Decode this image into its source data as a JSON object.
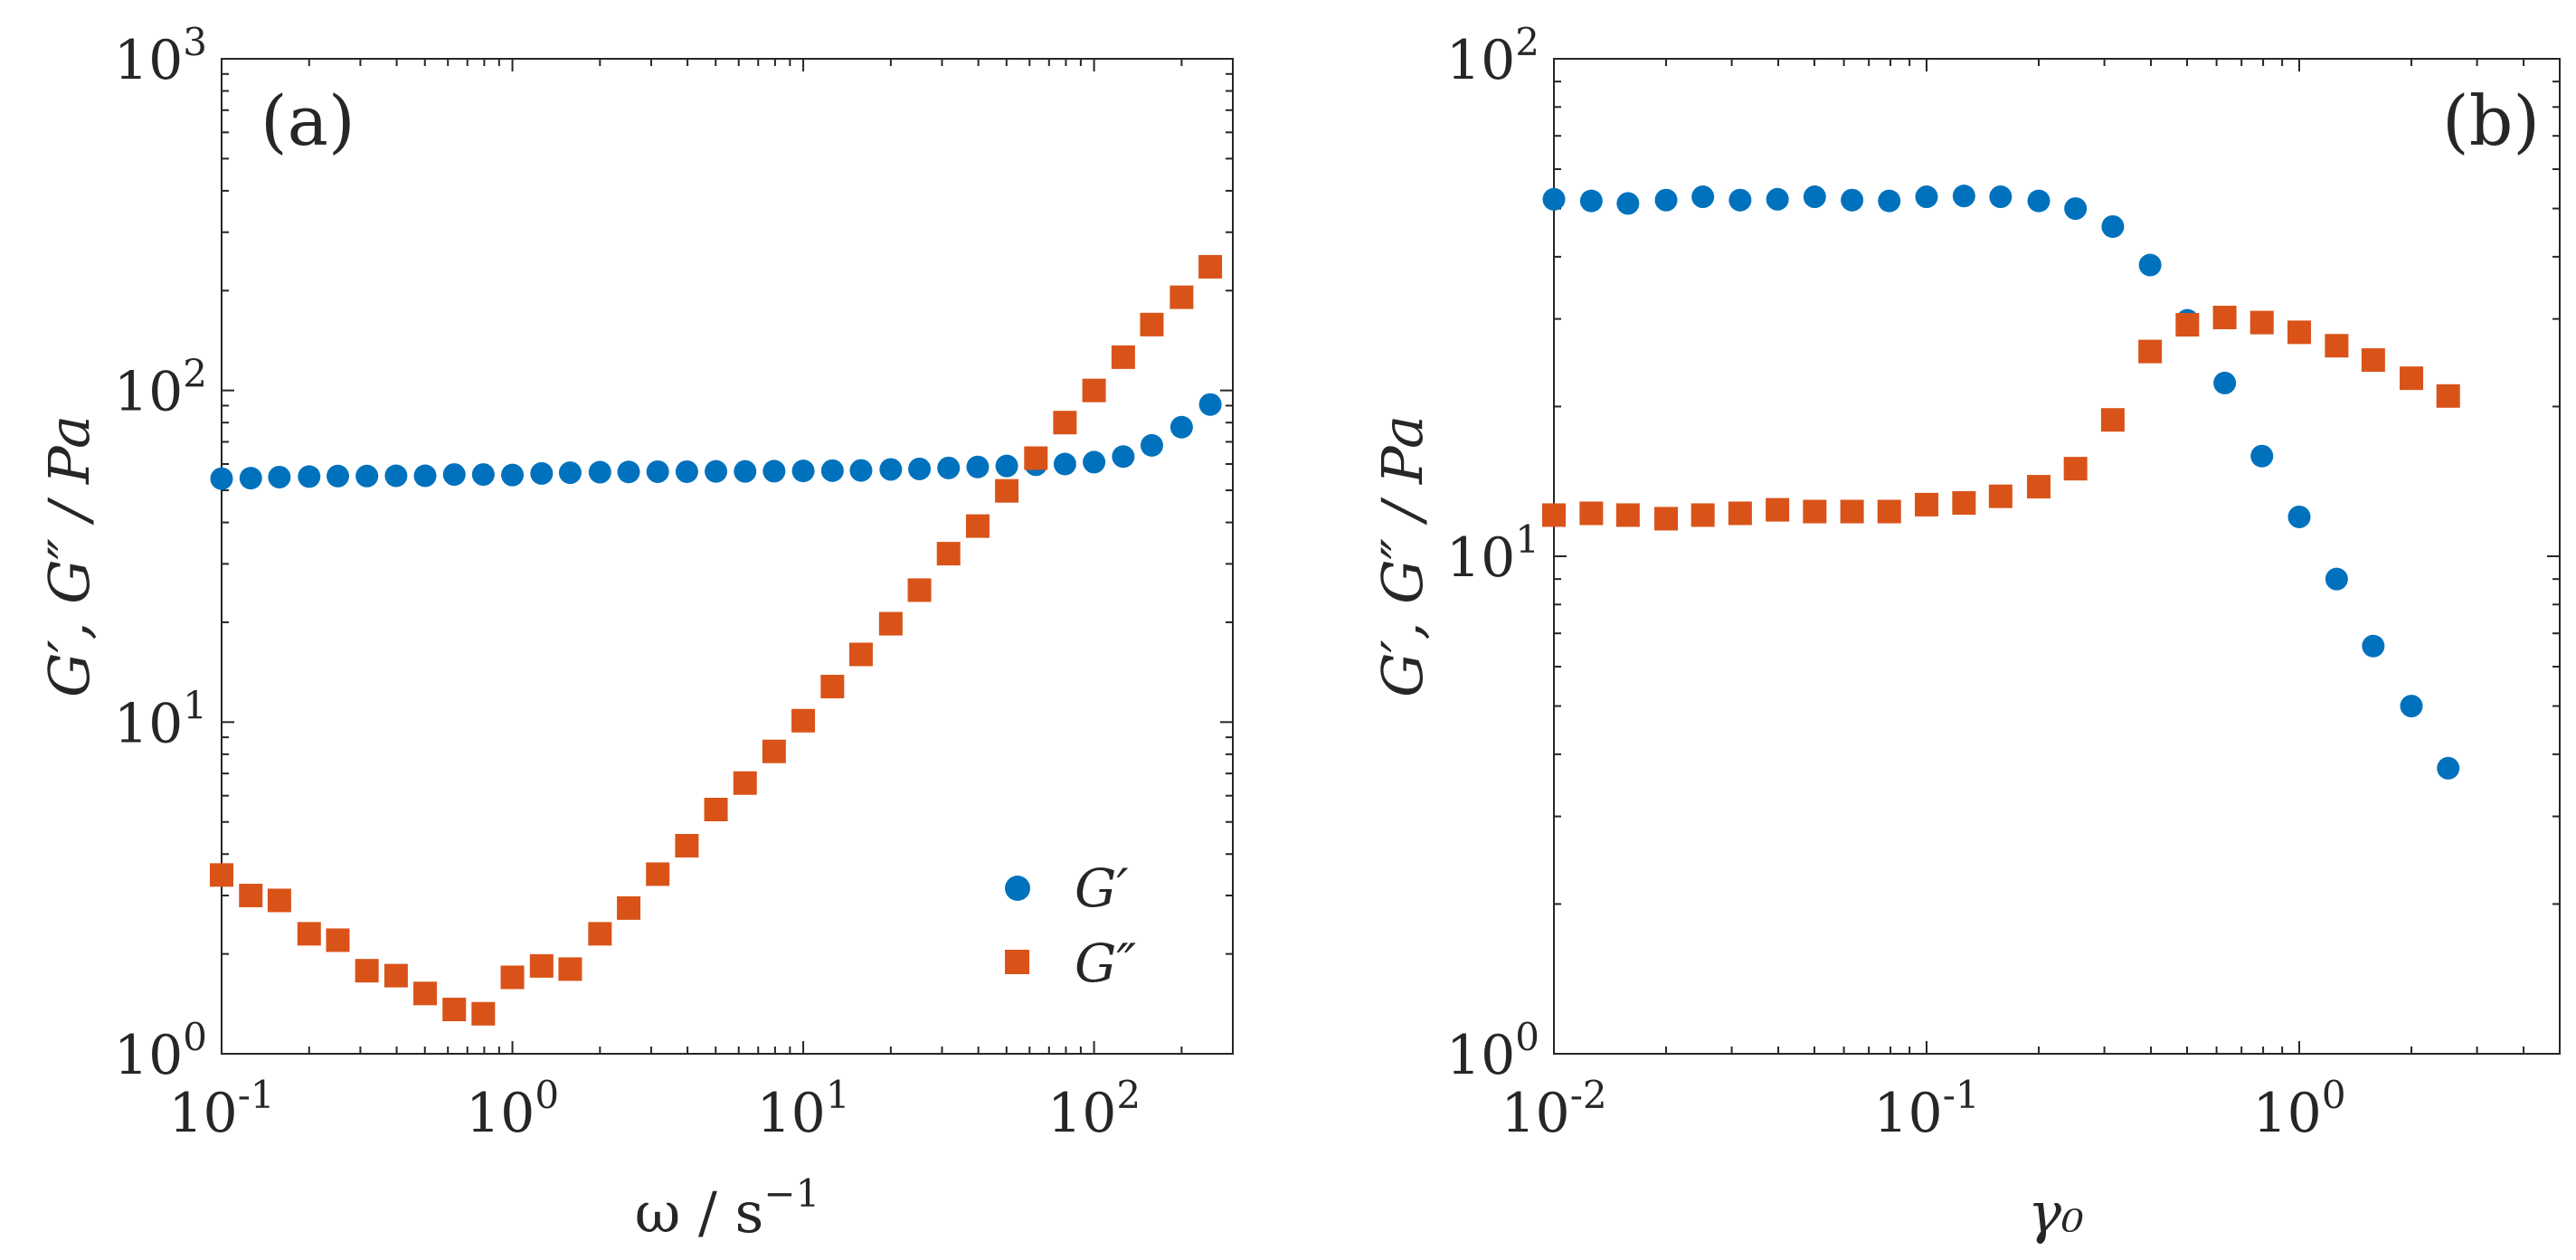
{
  "colors": {
    "g_prime": "#0072BD",
    "g_double_prime": "#D95319",
    "axis": "#262626"
  },
  "chart_data": [
    {
      "type": "scatter",
      "panel_label": "(a)",
      "xscale": "log",
      "yscale": "log",
      "xlim": [
        0.1,
        300
      ],
      "ylim": [
        1,
        1000
      ],
      "xlabel_main": "ω / s",
      "xlabel_sup": "−1",
      "ylabel": "G′, G″ / Pa",
      "xticks": [
        {
          "base": "10",
          "exp": "-1",
          "value": 0.1
        },
        {
          "base": "10",
          "exp": "0",
          "value": 1
        },
        {
          "base": "10",
          "exp": "1",
          "value": 10
        },
        {
          "base": "10",
          "exp": "2",
          "value": 100
        }
      ],
      "yticks": [
        {
          "base": "10",
          "exp": "0",
          "value": 1
        },
        {
          "base": "10",
          "exp": "1",
          "value": 10
        },
        {
          "base": "10",
          "exp": "2",
          "value": 100
        },
        {
          "base": "10",
          "exp": "3",
          "value": 1000
        }
      ],
      "legend": {
        "position": "bottom-right",
        "entries": [
          "G′",
          "G″"
        ]
      },
      "series": [
        {
          "name": "G′",
          "marker": "circle",
          "x": [
            0.1,
            0.126,
            0.158,
            0.2,
            0.251,
            0.316,
            0.398,
            0.501,
            0.631,
            0.794,
            1,
            1.26,
            1.58,
            2,
            2.51,
            3.16,
            3.98,
            5.01,
            6.31,
            7.94,
            10,
            12.6,
            15.8,
            20,
            25.1,
            31.6,
            39.8,
            50.1,
            63.1,
            79.4,
            100,
            126,
            158,
            200,
            251
          ],
          "y": [
            54.2,
            54.4,
            54.8,
            55,
            55.2,
            55.2,
            55.3,
            55.3,
            55.8,
            55.8,
            55.6,
            56.2,
            56.5,
            56.7,
            56.8,
            56.9,
            56.9,
            57,
            57,
            57.1,
            57.2,
            57.3,
            57.4,
            57.8,
            58,
            58.4,
            58.8,
            59.2,
            59.7,
            60,
            60.8,
            63.2,
            68.3,
            77.5,
            90.7
          ]
        },
        {
          "name": "G″",
          "marker": "square",
          "x": [
            0.1,
            0.126,
            0.158,
            0.2,
            0.251,
            0.316,
            0.398,
            0.501,
            0.631,
            0.794,
            1,
            1.26,
            1.58,
            2,
            2.51,
            3.16,
            3.98,
            5.01,
            6.31,
            7.94,
            10,
            12.6,
            15.8,
            20,
            25.1,
            31.6,
            39.8,
            50.1,
            63.1,
            79.4,
            100,
            126,
            158,
            200,
            251
          ],
          "y": [
            3.46,
            3,
            2.9,
            2.3,
            2.2,
            1.78,
            1.72,
            1.52,
            1.36,
            1.32,
            1.7,
            1.84,
            1.8,
            2.3,
            2.75,
            3.48,
            4.24,
            5.45,
            6.55,
            8.16,
            10.1,
            12.8,
            16,
            19.8,
            25,
            32.2,
            39,
            49.8,
            62.5,
            80,
            100,
            126,
            158,
            191,
            236
          ]
        }
      ]
    },
    {
      "type": "scatter",
      "panel_label": "(b)",
      "xscale": "log",
      "yscale": "log",
      "xlim": [
        0.01,
        5
      ],
      "ylim": [
        1,
        100
      ],
      "xlabel": "γ₀",
      "ylabel": "G′, G″ / Pa",
      "xticks": [
        {
          "base": "10",
          "exp": "-2",
          "value": 0.01
        },
        {
          "base": "10",
          "exp": "-1",
          "value": 0.1
        },
        {
          "base": "10",
          "exp": "0",
          "value": 1
        }
      ],
      "yticks": [
        {
          "base": "10",
          "exp": "0",
          "value": 1
        },
        {
          "base": "10",
          "exp": "1",
          "value": 10
        },
        {
          "base": "10",
          "exp": "2",
          "value": 100
        }
      ],
      "series": [
        {
          "name": "G′",
          "marker": "circle",
          "x": [
            0.01,
            0.0126,
            0.0158,
            0.02,
            0.0251,
            0.0316,
            0.0398,
            0.0501,
            0.0631,
            0.0794,
            0.1,
            0.126,
            0.158,
            0.2,
            0.251,
            0.316,
            0.398,
            0.501,
            0.631,
            0.794,
            1,
            1.26,
            1.58,
            2,
            2.51
          ],
          "y": [
            52.2,
            51.8,
            51.2,
            52,
            52.8,
            52,
            52.2,
            52.8,
            52,
            51.8,
            52.8,
            53,
            52.8,
            51.8,
            50,
            46,
            38.5,
            29.8,
            22.3,
            15.9,
            12,
            9,
            6.6,
            5,
            3.75
          ]
        },
        {
          "name": "G″",
          "marker": "square",
          "x": [
            0.01,
            0.0126,
            0.0158,
            0.02,
            0.0251,
            0.0316,
            0.0398,
            0.0501,
            0.0631,
            0.0794,
            0.1,
            0.126,
            0.158,
            0.2,
            0.251,
            0.316,
            0.398,
            0.501,
            0.631,
            0.794,
            1,
            1.26,
            1.58,
            2,
            2.51
          ],
          "y": [
            12.1,
            12.2,
            12.1,
            11.9,
            12.1,
            12.2,
            12.4,
            12.3,
            12.3,
            12.3,
            12.7,
            12.8,
            13.2,
            13.8,
            15,
            18.8,
            25.8,
            29.2,
            30.2,
            29.5,
            28.2,
            26.5,
            24.8,
            22.8,
            21
          ]
        }
      ]
    }
  ]
}
